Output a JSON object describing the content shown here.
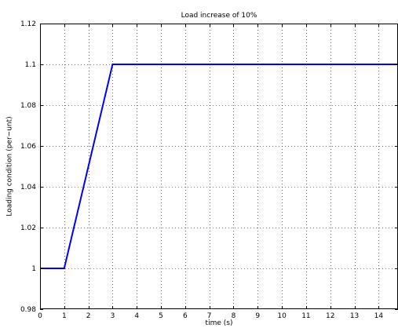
{
  "chart_data": {
    "type": "line",
    "title": "Load increase of 10%",
    "xlabel": "time (s)",
    "ylabel": "Loading condition (per−unt)",
    "xlim": [
      0,
      14.8
    ],
    "ylim": [
      0.98,
      1.12
    ],
    "grid": true,
    "x_ticks": [
      "0",
      "1",
      "2",
      "3",
      "4",
      "5",
      "6",
      "7",
      "8",
      "9",
      "10",
      "11",
      "12",
      "13",
      "14"
    ],
    "y_ticks": [
      "0.98",
      "1",
      "1.02",
      "1.04",
      "1.06",
      "1.08",
      "1.1",
      "1.12"
    ],
    "series": [
      {
        "color": "#0000ff",
        "x": [
          0,
          1,
          3,
          14.8
        ],
        "y": [
          1.0,
          1.0,
          1.1,
          1.1
        ]
      }
    ]
  }
}
